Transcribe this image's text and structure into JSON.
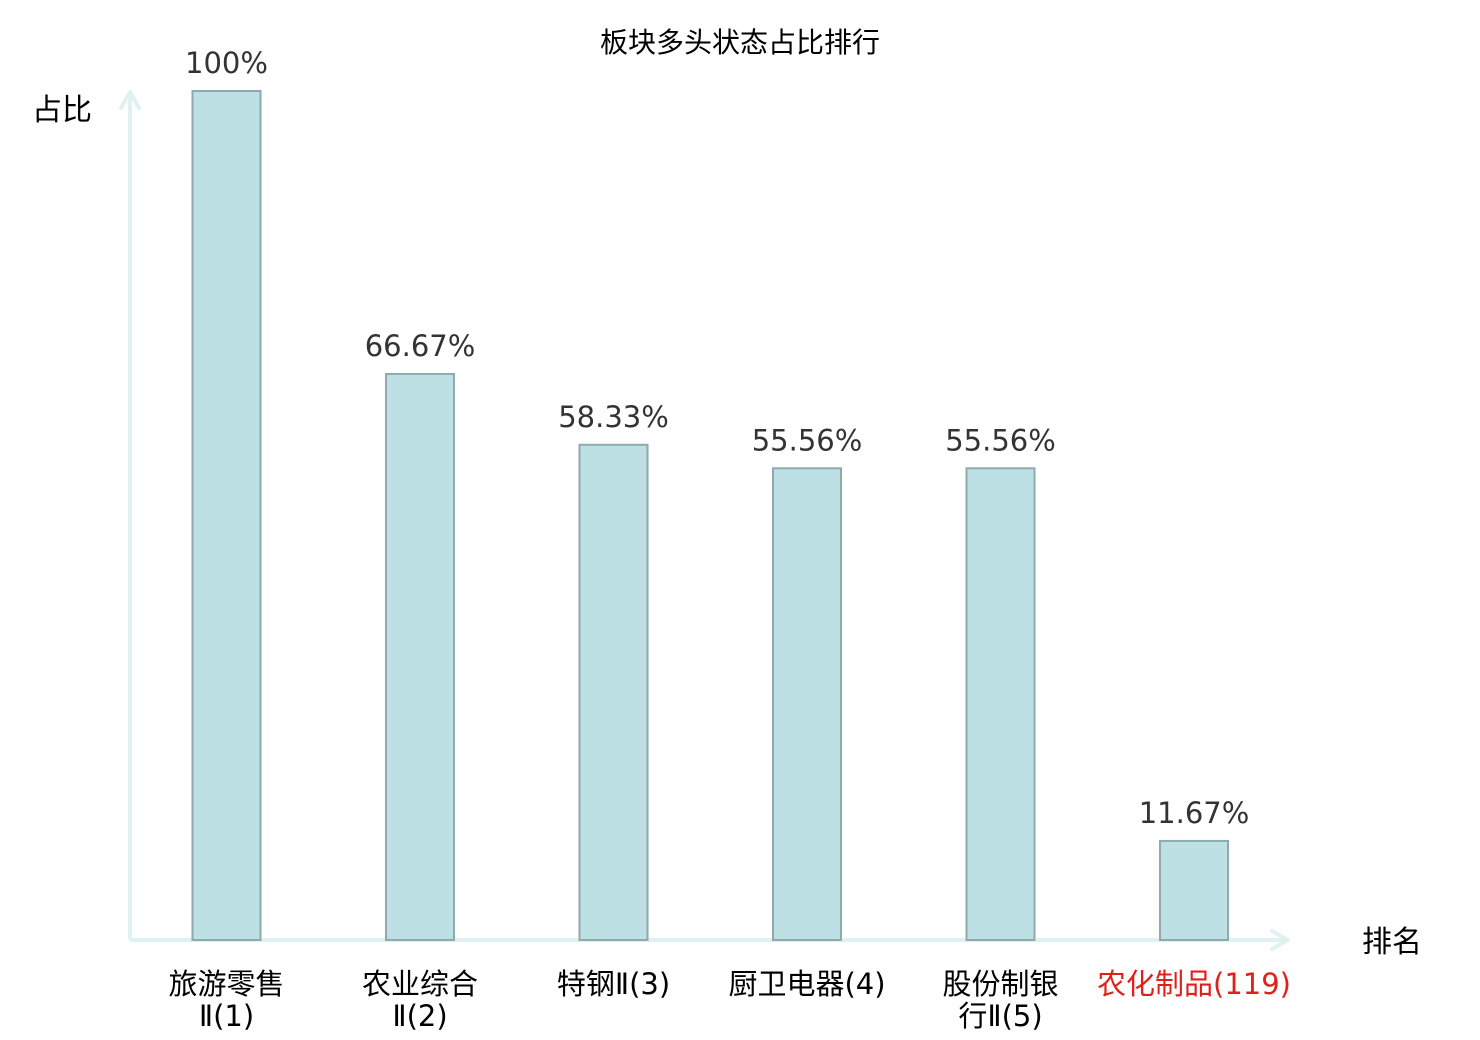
{
  "chart_data": {
    "type": "bar",
    "title": "板块多头状态占比排行",
    "ylabel": "占比",
    "xlabel": "排名",
    "ylim": [
      0,
      100
    ],
    "grid": false,
    "categories": [
      {
        "lines": [
          "旅游零售",
          "Ⅱ(1)"
        ],
        "highlight": false
      },
      {
        "lines": [
          "农业综合",
          "Ⅱ(2)"
        ],
        "highlight": false
      },
      {
        "lines": [
          "特钢Ⅱ(3)"
        ],
        "highlight": false
      },
      {
        "lines": [
          "厨卫电器(4)"
        ],
        "highlight": false
      },
      {
        "lines": [
          "股份制银",
          "行Ⅱ(5)"
        ],
        "highlight": false
      },
      {
        "lines": [
          "农化制品(119)"
        ],
        "highlight": true
      }
    ],
    "values": [
      100,
      66.67,
      58.33,
      55.56,
      55.56,
      11.67
    ],
    "value_labels": [
      "100%",
      "66.67%",
      "58.33%",
      "55.56%",
      "55.56%",
      "11.67%"
    ],
    "colors": {
      "bar_fill": "#bce0e3",
      "bar_stroke": "#8faaad",
      "axis": "#e0f2ef",
      "highlight_text": "#e0201b",
      "normal_text": "#000000"
    }
  }
}
